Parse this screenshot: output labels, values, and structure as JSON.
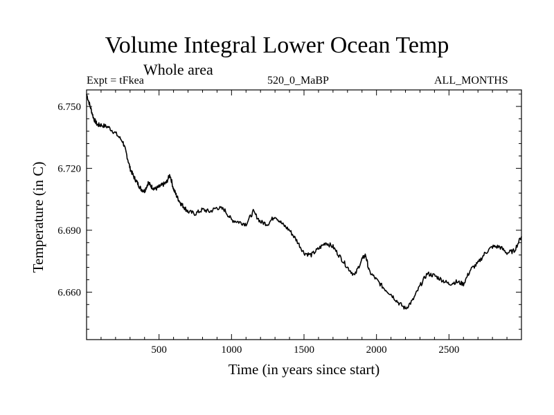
{
  "chart_data": {
    "type": "line",
    "title": "Volume Integral Lower Ocean Temp",
    "subtitle": "Whole area",
    "header_left": "Expt = tFkea",
    "header_center": "520_0_MaBP",
    "header_right": "ALL_MONTHS",
    "xlabel": "Time (in years since start)",
    "ylabel": "Temperature (in C)",
    "xlim": [
      0,
      3000
    ],
    "ylim": [
      6.637,
      6.758
    ],
    "x_major_ticks": [
      500,
      1000,
      1500,
      2000,
      2500
    ],
    "x_minor_step": 100,
    "y_major_ticks": [
      6.66,
      6.69,
      6.72,
      6.75
    ],
    "y_tick_labels": [
      "6.660",
      "6.690",
      "6.720",
      "6.750"
    ],
    "y_minor_step": 0.006,
    "grid": false,
    "line_color": "#000000",
    "series": [
      {
        "x": [
          0,
          25,
          50,
          75,
          100,
          150,
          200,
          250,
          275,
          300,
          325,
          350,
          375,
          400,
          425,
          450,
          475,
          500,
          525,
          550,
          575,
          600,
          625,
          650,
          675,
          700,
          750,
          800,
          850,
          900,
          950,
          1000,
          1050,
          1100,
          1150,
          1200,
          1250,
          1300,
          1350,
          1400,
          1450,
          1500,
          1550,
          1600,
          1650,
          1700,
          1750,
          1800,
          1850,
          1900,
          1925,
          1950,
          2000,
          2050,
          2100,
          2150,
          2200,
          2250,
          2300,
          2350,
          2400,
          2450,
          2500,
          2550,
          2600,
          2650,
          2700,
          2750,
          2800,
          2850,
          2900,
          2950,
          3000
        ],
        "values": [
          6.756,
          6.75,
          6.744,
          6.741,
          6.741,
          6.74,
          6.737,
          6.733,
          6.727,
          6.72,
          6.716,
          6.713,
          6.71,
          6.709,
          6.713,
          6.711,
          6.71,
          6.711,
          6.712,
          6.713,
          6.717,
          6.71,
          6.706,
          6.703,
          6.701,
          6.699,
          6.698,
          6.7,
          6.699,
          6.701,
          6.7,
          6.695,
          6.694,
          6.693,
          6.699,
          6.694,
          6.693,
          6.697,
          6.693,
          6.69,
          6.685,
          6.679,
          6.678,
          6.681,
          6.684,
          6.682,
          6.677,
          6.672,
          6.668,
          6.676,
          6.678,
          6.67,
          6.666,
          6.662,
          6.659,
          6.655,
          6.652,
          6.656,
          6.663,
          6.669,
          6.668,
          6.666,
          6.664,
          6.665,
          6.664,
          6.671,
          6.674,
          6.679,
          6.682,
          6.682,
          6.679,
          6.68,
          6.687
        ]
      }
    ]
  }
}
